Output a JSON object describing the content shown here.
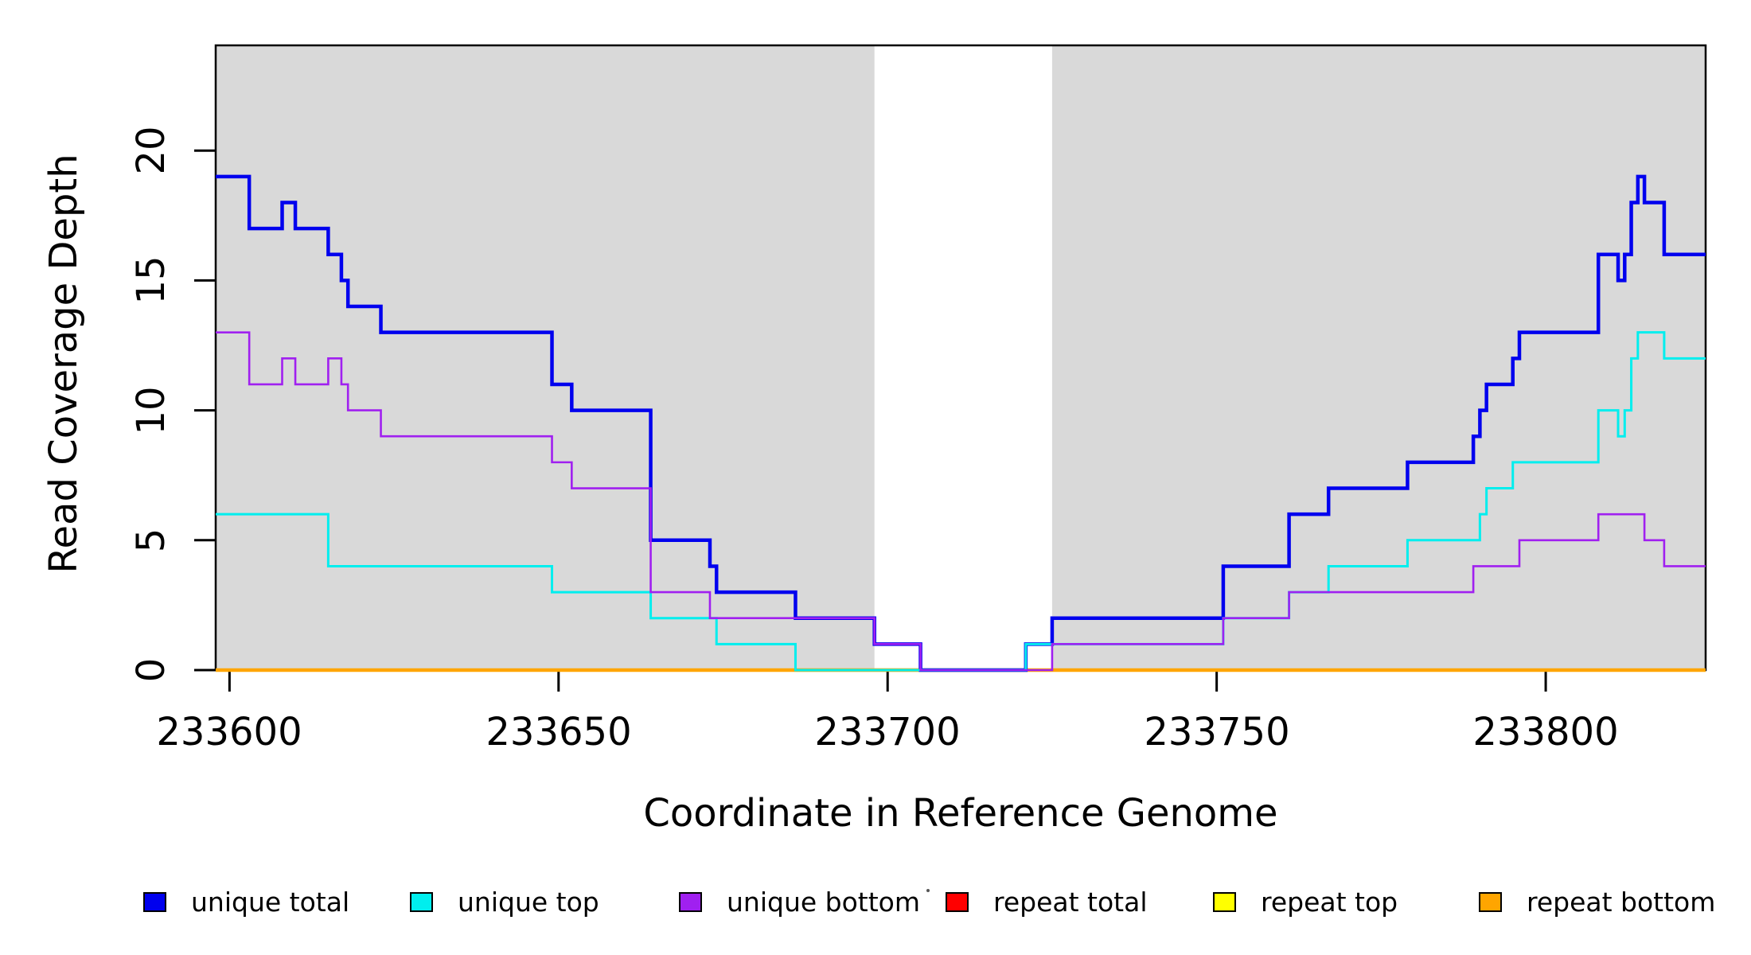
{
  "chart_data": {
    "type": "line",
    "subtype": "step-coverage-plot",
    "title": "",
    "xlabel": "Coordinate in Reference Genome",
    "ylabel": "Read Coverage Depth",
    "xlim": [
      233597.9,
      233824.3
    ],
    "ylim": [
      0,
      24.05
    ],
    "grid": false,
    "background_shade_color": "#d9d9d9",
    "shaded_regions": [
      {
        "x0": 233597.9,
        "x1": 233698
      },
      {
        "x0": 233725,
        "x1": 233824.3
      }
    ],
    "x_ticks": {
      "values": [
        233600,
        233650,
        233700,
        233750,
        233800
      ],
      "labels": [
        "233600",
        "233650",
        "233700",
        "233750",
        "233800"
      ]
    },
    "y_ticks": {
      "values": [
        0,
        5,
        10,
        15,
        20
      ],
      "labels": [
        "0",
        "5",
        "10",
        "15",
        "20"
      ]
    },
    "series": [
      {
        "name": "repeat total",
        "color": "#ff0000",
        "width": 3,
        "changes": [
          [
            233597.9,
            0
          ]
        ]
      },
      {
        "name": "repeat top",
        "color": "#ffff00",
        "width": 3,
        "changes": [
          [
            233597.9,
            0
          ]
        ]
      },
      {
        "name": "repeat bottom",
        "color": "#ffa500",
        "width": 4.5,
        "changes": [
          [
            233597.9,
            0
          ]
        ]
      },
      {
        "name": "unique total",
        "color": "#0000ee",
        "width": 4.5,
        "changes": [
          [
            233597.9,
            19
          ],
          [
            233603,
            17
          ],
          [
            233608,
            18
          ],
          [
            233610,
            17
          ],
          [
            233615,
            16
          ],
          [
            233617,
            15
          ],
          [
            233618,
            14
          ],
          [
            233623,
            13
          ],
          [
            233649,
            11
          ],
          [
            233652,
            10
          ],
          [
            233664,
            5
          ],
          [
            233673,
            4
          ],
          [
            233674,
            3
          ],
          [
            233686,
            2
          ],
          [
            233698,
            1
          ],
          [
            233705,
            0
          ],
          [
            233721,
            1
          ],
          [
            233725,
            2
          ],
          [
            233751,
            4
          ],
          [
            233761,
            6
          ],
          [
            233767,
            7
          ],
          [
            233779,
            8
          ],
          [
            233789,
            9
          ],
          [
            233790,
            10
          ],
          [
            233791,
            11
          ],
          [
            233795,
            12
          ],
          [
            233796,
            13
          ],
          [
            233808,
            16
          ],
          [
            233811,
            15
          ],
          [
            233812,
            16
          ],
          [
            233813,
            18
          ],
          [
            233814,
            19
          ],
          [
            233815,
            18
          ],
          [
            233818,
            16
          ]
        ]
      },
      {
        "name": "unique top",
        "color": "#00eeee",
        "width": 3,
        "changes": [
          [
            233597.9,
            6
          ],
          [
            233615,
            4
          ],
          [
            233649,
            3
          ],
          [
            233664,
            2
          ],
          [
            233674,
            1
          ],
          [
            233686,
            0
          ],
          [
            233721,
            1
          ],
          [
            233751,
            2
          ],
          [
            233761,
            3
          ],
          [
            233767,
            4
          ],
          [
            233779,
            5
          ],
          [
            233790,
            6
          ],
          [
            233791,
            7
          ],
          [
            233795,
            8
          ],
          [
            233808,
            10
          ],
          [
            233811,
            9
          ],
          [
            233812,
            10
          ],
          [
            233813,
            12
          ],
          [
            233814,
            13
          ],
          [
            233818,
            12
          ]
        ]
      },
      {
        "name": "unique bottom",
        "color": "#a020f0",
        "width": 2.6,
        "changes": [
          [
            233597.9,
            13
          ],
          [
            233603,
            11
          ],
          [
            233608,
            12
          ],
          [
            233610,
            11
          ],
          [
            233615,
            12
          ],
          [
            233617,
            11
          ],
          [
            233618,
            10
          ],
          [
            233623,
            9
          ],
          [
            233649,
            8
          ],
          [
            233652,
            7
          ],
          [
            233664,
            3
          ],
          [
            233673,
            2
          ],
          [
            233698,
            1
          ],
          [
            233705,
            0
          ],
          [
            233725,
            1
          ],
          [
            233751,
            2
          ],
          [
            233761,
            3
          ],
          [
            233789,
            4
          ],
          [
            233796,
            5
          ],
          [
            233808,
            6
          ],
          [
            233815,
            5
          ],
          [
            233818,
            4
          ]
        ]
      }
    ],
    "legend": {
      "position": "bottom",
      "items": [
        {
          "label": "unique total",
          "color": "#0000ee"
        },
        {
          "label": "unique top",
          "color": "#00eeee"
        },
        {
          "label": "unique bottom",
          "color": "#a020f0"
        },
        {
          "label": "repeat total",
          "color": "#ff0000"
        },
        {
          "label": "repeat top",
          "color": "#ffff00"
        },
        {
          "label": "repeat bottom",
          "color": "#ffa500"
        }
      ]
    }
  }
}
